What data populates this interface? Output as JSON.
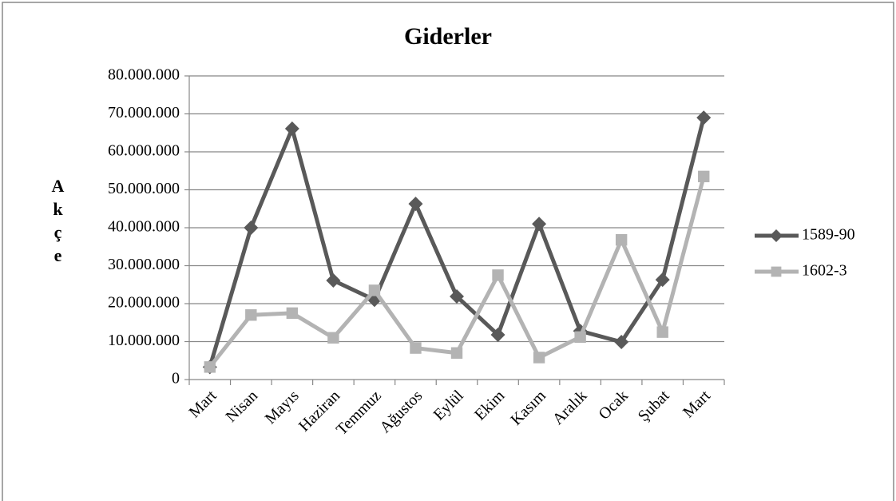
{
  "chart_data": {
    "type": "line",
    "title": "Giderler",
    "ylabel": "Akçe",
    "categories": [
      "Mart",
      "Nisan",
      "Mayıs",
      "Haziran",
      "Temmuz",
      "Ağustos",
      "Eylül",
      "Ekim",
      "Kasım",
      "Aralık",
      "Ocak",
      "Şubat",
      "Mart"
    ],
    "series": [
      {
        "name": "1589-90",
        "color": "#595959",
        "marker": "diamond",
        "values": [
          3300000,
          40000000,
          66100000,
          26100000,
          21000000,
          46300000,
          21900000,
          11800000,
          41000000,
          12800000,
          9900000,
          26300000,
          69000000
        ]
      },
      {
        "name": "1602-3",
        "color": "#b3b3b3",
        "marker": "square",
        "values": [
          3300000,
          17000000,
          17500000,
          11000000,
          23500000,
          8300000,
          7000000,
          27500000,
          5800000,
          11200000,
          36800000,
          12500000,
          53500000
        ]
      }
    ],
    "ylim": [
      0,
      80000000
    ],
    "yticks": [
      0,
      {
        "value": 10000000,
        "label": "10.000.000"
      },
      {
        "value": 20000000,
        "label": "20.000.000"
      },
      {
        "value": 30000000,
        "label": "30.000.000"
      },
      {
        "value": 40000000,
        "label": "40.000.000"
      },
      {
        "value": 50000000,
        "label": "50.000.000"
      },
      {
        "value": 60000000,
        "label": "60.000.000"
      },
      {
        "value": 70000000,
        "label": "70.000.000"
      },
      {
        "value": 80000000,
        "label": "80.000.000"
      }
    ],
    "grid": true,
    "legend": "right"
  }
}
